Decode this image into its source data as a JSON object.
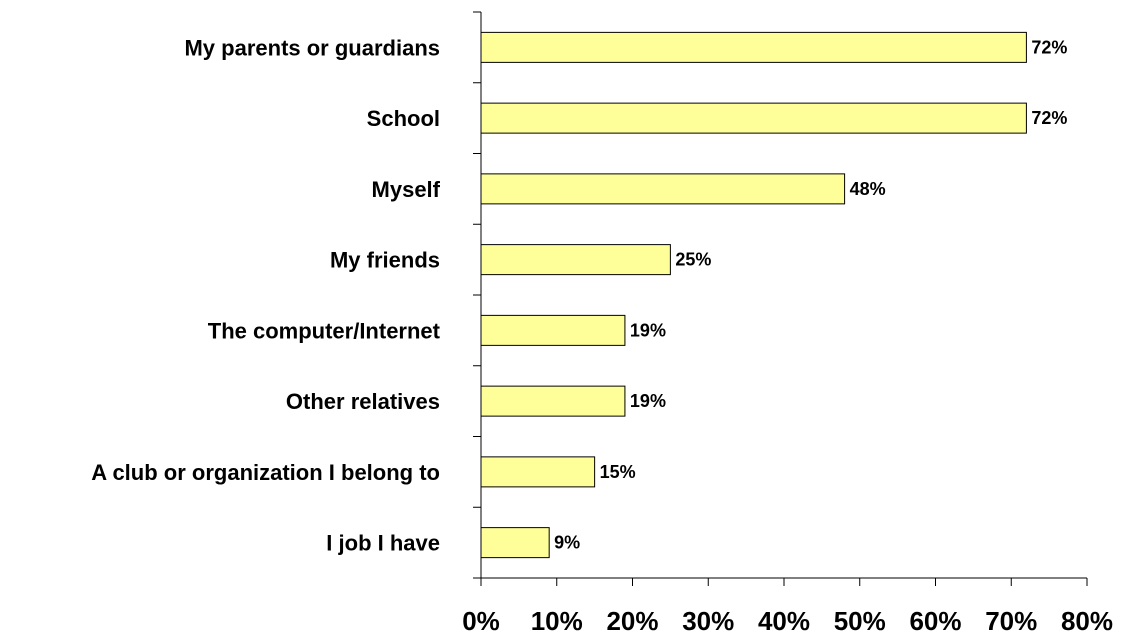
{
  "chart_data": {
    "type": "bar",
    "orientation": "horizontal",
    "categories": [
      "My parents or guardians",
      "School",
      "Myself",
      "My friends",
      "The computer/Internet",
      "Other relatives",
      "A club or organization I belong to",
      "I job I have"
    ],
    "values": [
      72,
      72,
      48,
      25,
      19,
      19,
      15,
      9
    ],
    "data_labels": [
      "72%",
      "72%",
      "48%",
      "25%",
      "19%",
      "19%",
      "15%",
      "9%"
    ],
    "x_ticks": [
      "0%",
      "10%",
      "20%",
      "30%",
      "40%",
      "50%",
      "60%",
      "70%",
      "80%"
    ],
    "xlim": [
      0,
      80
    ],
    "grid": false,
    "legend": "none",
    "bar_color": "#FFFF99",
    "bar_edge_color": "#000000",
    "title": "",
    "xlabel": "",
    "ylabel": ""
  }
}
